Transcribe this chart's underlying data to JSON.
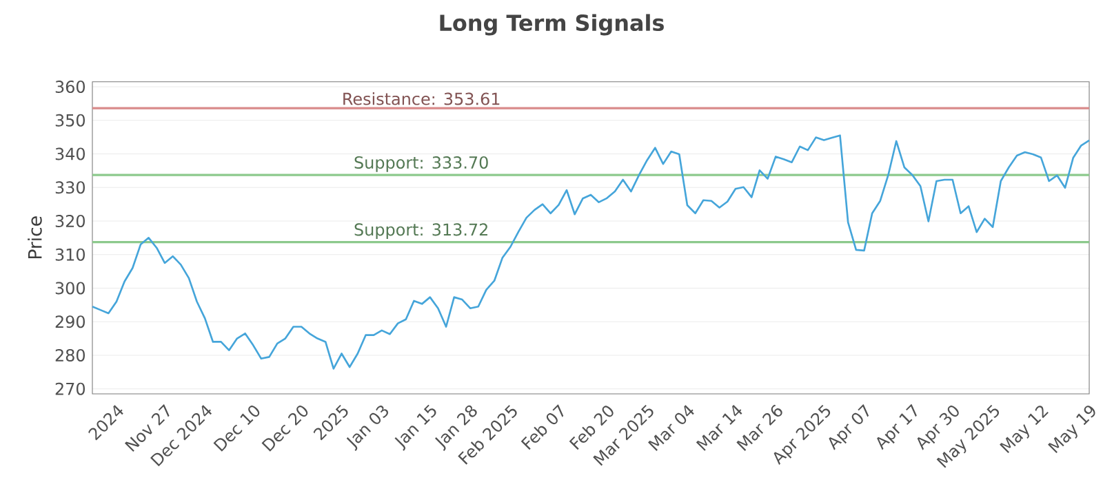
{
  "chart_data": {
    "type": "line",
    "title": "Long Term Signals",
    "ylabel": "Price",
    "categories": [
      null,
      null,
      null,
      "2024",
      null,
      null,
      null,
      null,
      null,
      "Nov 27",
      null,
      null,
      null,
      null,
      "Dec 2024",
      null,
      null,
      null,
      null,
      null,
      "Dec 10",
      null,
      null,
      null,
      null,
      null,
      "Dec 20",
      null,
      null,
      null,
      null,
      "2025",
      null,
      null,
      null,
      null,
      "Jan 03",
      null,
      null,
      null,
      null,
      null,
      "Jan 15",
      null,
      null,
      null,
      null,
      "Jan 28",
      null,
      null,
      null,
      null,
      "Feb 2025",
      null,
      null,
      null,
      null,
      null,
      "Feb 07",
      null,
      null,
      null,
      null,
      null,
      "Feb 20",
      null,
      null,
      null,
      null,
      "Mar 2025",
      null,
      null,
      null,
      null,
      "Mar 04",
      null,
      null,
      null,
      null,
      null,
      "Mar 14",
      null,
      null,
      null,
      null,
      "Mar 26",
      null,
      null,
      null,
      null,
      null,
      "Apr 2025",
      null,
      null,
      null,
      null,
      "Apr 07",
      null,
      null,
      null,
      null,
      null,
      "Apr 17",
      null,
      null,
      null,
      null,
      "Apr 30",
      null,
      null,
      null,
      null,
      "May 2025",
      null,
      null,
      null,
      null,
      null,
      "May 12",
      null,
      null,
      null,
      null,
      null,
      "May 19"
    ],
    "series": [
      {
        "color": "#45a5da",
        "values": [
          294.5,
          293.5,
          292.5,
          296,
          302,
          306,
          313,
          315,
          312,
          307.5,
          309.5,
          307,
          303,
          296,
          291,
          284,
          284,
          281.5,
          285,
          286.5,
          283,
          279,
          279.5,
          283.5,
          285,
          288.5,
          288.5,
          286.5,
          285,
          284,
          276,
          280.5,
          276.5,
          280.5,
          286,
          286,
          287.4,
          286.3,
          289.5,
          290.7,
          296.2,
          295.3,
          297.3,
          294,
          288.5,
          297.3,
          296.6,
          294,
          294.5,
          299.5,
          302.2,
          309,
          312.3,
          316.8,
          321,
          323.3,
          325,
          322.3,
          324.8,
          329.2,
          322,
          326.7,
          327.8,
          325.6,
          326.8,
          328.8,
          332.3,
          328.8,
          333.7,
          338.1,
          341.8,
          337,
          340.7,
          339.9,
          324.7,
          322.3,
          326.2,
          326,
          324,
          325.8,
          329.6,
          330.1,
          327.1,
          335.1,
          332.6,
          339.2,
          338.4,
          337.5,
          342.2,
          341.1,
          344.9,
          344.1,
          344.8,
          345.5,
          319.6,
          311.4,
          311.2,
          322.3,
          326,
          333.7,
          343.8,
          336,
          333.7,
          330.4,
          319.9,
          331.9,
          332.3,
          332.3,
          322.3,
          324.4,
          316.7,
          320.7,
          318.2,
          331.9,
          336,
          339.5,
          340.5,
          339.9,
          338.9,
          331.9,
          333.6,
          329.9,
          338.8,
          342.5,
          344
        ]
      }
    ],
    "ylim": [
      268.5,
      361.5
    ],
    "yticks": [
      270,
      280,
      290,
      300,
      310,
      320,
      330,
      340,
      350,
      360
    ],
    "ref_lines": [
      {
        "axis": "y",
        "value": 353.61,
        "label": "Resistance: 353.61",
        "color": "#d98a8a"
      },
      {
        "axis": "y",
        "value": 333.7,
        "label": "Support: 333.70",
        "color": "#8cc98c"
      },
      {
        "axis": "y",
        "value": 313.72,
        "label": "Support: 313.72",
        "color": "#8cc98c"
      }
    ],
    "grid": "y",
    "marker": "none"
  }
}
